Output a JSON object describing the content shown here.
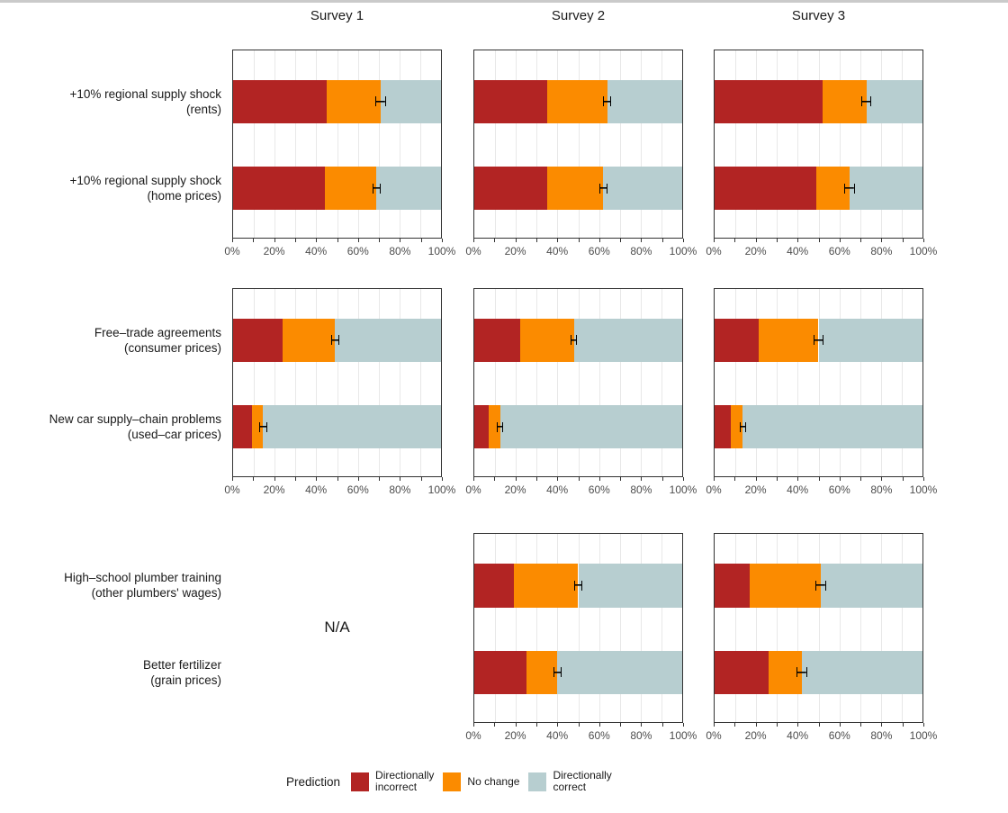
{
  "page": {
    "background": "#ffffff",
    "top_strip_color": "#cacaca"
  },
  "na_label": "N/A",
  "chart_data": {
    "type": "bar",
    "variant": "horizontal-stacked-faceted",
    "facet_columns": [
      "Survey 1",
      "Survey 2",
      "Survey 3"
    ],
    "x_axis": {
      "range": [
        0,
        100
      ],
      "unit": "percent",
      "tick_labels": [
        "0%",
        "20%",
        "40%",
        "60%",
        "80%",
        "100%"
      ],
      "labeled_tick_values": [
        0,
        20,
        40,
        60,
        80,
        100
      ],
      "minor_grid_step": 10,
      "grid": true
    },
    "legend": {
      "title": "Prediction",
      "position": "bottom",
      "entries": [
        {
          "key": "incorrect",
          "label_lines": [
            "Directionally",
            "incorrect"
          ],
          "label": "Directionally incorrect",
          "color": "#b22423"
        },
        {
          "key": "no_change",
          "label_lines": [
            "No change"
          ],
          "label": "No change",
          "color": "#fb8b00"
        },
        {
          "key": "correct",
          "label_lines": [
            "Directionally",
            "correct"
          ],
          "label": "Directionally correct",
          "color": "#b7ced0"
        }
      ]
    },
    "error_bar": {
      "color": "#000000",
      "meaning": "interval around cumulative incorrect + no-change share (%)"
    },
    "rows": [
      {
        "scenarios": [
          {
            "label_lines": [
              "+10% regional supply shock",
              "(rents)"
            ]
          },
          {
            "label_lines": [
              "+10% regional supply shock",
              "(home prices)"
            ]
          }
        ],
        "cells": [
          {
            "facet": "Survey 1",
            "bars": [
              {
                "incorrect": 45,
                "no_change": 26,
                "correct": 29,
                "err_center": 71,
                "err_half": 2.5
              },
              {
                "incorrect": 44,
                "no_change": 25,
                "correct": 31,
                "err_center": 69,
                "err_half": 2
              }
            ]
          },
          {
            "facet": "Survey 2",
            "bars": [
              {
                "incorrect": 35,
                "no_change": 29,
                "correct": 36,
                "err_center": 64,
                "err_half": 2
              },
              {
                "incorrect": 35,
                "no_change": 27,
                "correct": 38,
                "err_center": 62,
                "err_half": 2
              }
            ]
          },
          {
            "facet": "Survey 3",
            "bars": [
              {
                "incorrect": 52,
                "no_change": 21,
                "correct": 27,
                "err_center": 73,
                "err_half": 2.5
              },
              {
                "incorrect": 49,
                "no_change": 16,
                "correct": 35,
                "err_center": 65,
                "err_half": 2.5
              }
            ]
          }
        ]
      },
      {
        "scenarios": [
          {
            "label_lines": [
              "Free–trade agreements",
              "(consumer prices)"
            ]
          },
          {
            "label_lines": [
              "New car supply–chain problems",
              "(used–car prices)"
            ]
          }
        ],
        "cells": [
          {
            "facet": "Survey 1",
            "bars": [
              {
                "incorrect": 24,
                "no_change": 25,
                "correct": 51,
                "err_center": 49,
                "err_half": 2
              },
              {
                "incorrect": 9,
                "no_change": 5.5,
                "correct": 85.5,
                "err_center": 14.5,
                "err_half": 2
              }
            ]
          },
          {
            "facet": "Survey 2",
            "bars": [
              {
                "incorrect": 22,
                "no_change": 26,
                "correct": 52,
                "err_center": 48,
                "err_half": 1.5
              },
              {
                "incorrect": 7,
                "no_change": 5.5,
                "correct": 87.5,
                "err_center": 12.5,
                "err_half": 1.5
              }
            ]
          },
          {
            "facet": "Survey 3",
            "bars": [
              {
                "incorrect": 21,
                "no_change": 29,
                "correct": 50,
                "err_center": 50,
                "err_half": 2.5
              },
              {
                "incorrect": 8,
                "no_change": 5.5,
                "correct": 86.5,
                "err_center": 13.5,
                "err_half": 1.5
              }
            ]
          }
        ]
      },
      {
        "scenarios": [
          {
            "label_lines": [
              "High–school plumber training",
              "(other plumbers' wages)"
            ]
          },
          {
            "label_lines": [
              "Better fertilizer",
              "(grain prices)"
            ]
          }
        ],
        "cells": [
          {
            "facet": "Survey 1",
            "na": true
          },
          {
            "facet": "Survey 2",
            "bars": [
              {
                "incorrect": 19,
                "no_change": 31,
                "correct": 50,
                "err_center": 50,
                "err_half": 2
              },
              {
                "incorrect": 25,
                "no_change": 15,
                "correct": 60,
                "err_center": 40,
                "err_half": 2
              }
            ]
          },
          {
            "facet": "Survey 3",
            "bars": [
              {
                "incorrect": 17,
                "no_change": 34,
                "correct": 49,
                "err_center": 51,
                "err_half": 2.5
              },
              {
                "incorrect": 26,
                "no_change": 16,
                "correct": 58,
                "err_center": 42,
                "err_half": 2.5
              }
            ]
          }
        ]
      }
    ]
  }
}
